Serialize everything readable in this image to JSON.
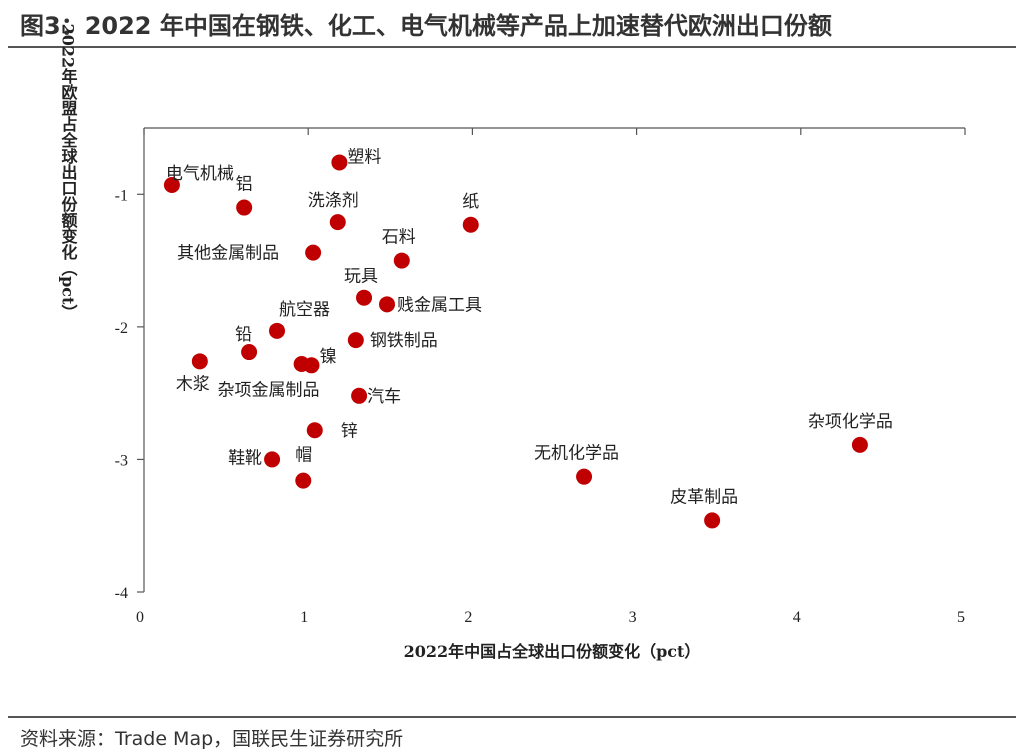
{
  "header": {
    "title": "图3：2022 年中国在钢铁、化工、电气机械等产品上加速替代欧洲出口份额"
  },
  "footer": {
    "source": "资料来源：Trade Map，国联民生证券研究所"
  },
  "chart_data": {
    "type": "scatter",
    "xlabel": "2022年中国占全球出口份额变化（pct）",
    "ylabel": "2022年欧盟占全球出口份额变化（pct）",
    "xlim": [
      0,
      5
    ],
    "ylim": [
      -4,
      -0.5
    ],
    "xticks": [
      0,
      1,
      2,
      3,
      4,
      5
    ],
    "yticks": [
      -1,
      -2,
      -3,
      -4
    ],
    "grid": false,
    "marker_color": "#C00000",
    "points": [
      {
        "label": "电气机械",
        "x": 0.17,
        "y": -0.93
      },
      {
        "label": "铝",
        "x": 0.61,
        "y": -1.1
      },
      {
        "label": "塑料",
        "x": 1.19,
        "y": -0.76
      },
      {
        "label": "洗涤剂",
        "x": 1.18,
        "y": -1.21
      },
      {
        "label": "纸",
        "x": 1.99,
        "y": -1.23
      },
      {
        "label": "其他金属制品",
        "x": 1.03,
        "y": -1.44
      },
      {
        "label": "石料",
        "x": 1.57,
        "y": -1.5
      },
      {
        "label": "玩具",
        "x": 1.34,
        "y": -1.78
      },
      {
        "label": "贱金属工具",
        "x": 1.48,
        "y": -1.83
      },
      {
        "label": "航空器",
        "x": 0.81,
        "y": -2.03
      },
      {
        "label": "铅",
        "x": 0.64,
        "y": -2.19
      },
      {
        "label": "钢铁制品",
        "x": 1.29,
        "y": -2.1
      },
      {
        "label": "木浆",
        "x": 0.34,
        "y": -2.26
      },
      {
        "label": "镍",
        "x": 0.96,
        "y": -2.28
      },
      {
        "label": "杂项金属制品",
        "x": 1.02,
        "y": -2.29
      },
      {
        "label": "汽车",
        "x": 1.31,
        "y": -2.52
      },
      {
        "label": "锌",
        "x": 1.04,
        "y": -2.78
      },
      {
        "label": "鞋靴",
        "x": 0.78,
        "y": -3.0
      },
      {
        "label": "帽",
        "x": 0.97,
        "y": -3.16
      },
      {
        "label": "无机化学品",
        "x": 2.68,
        "y": -3.13
      },
      {
        "label": "皮革制品",
        "x": 3.46,
        "y": -3.46
      },
      {
        "label": "杂项化学品",
        "x": 4.36,
        "y": -2.89
      }
    ]
  }
}
